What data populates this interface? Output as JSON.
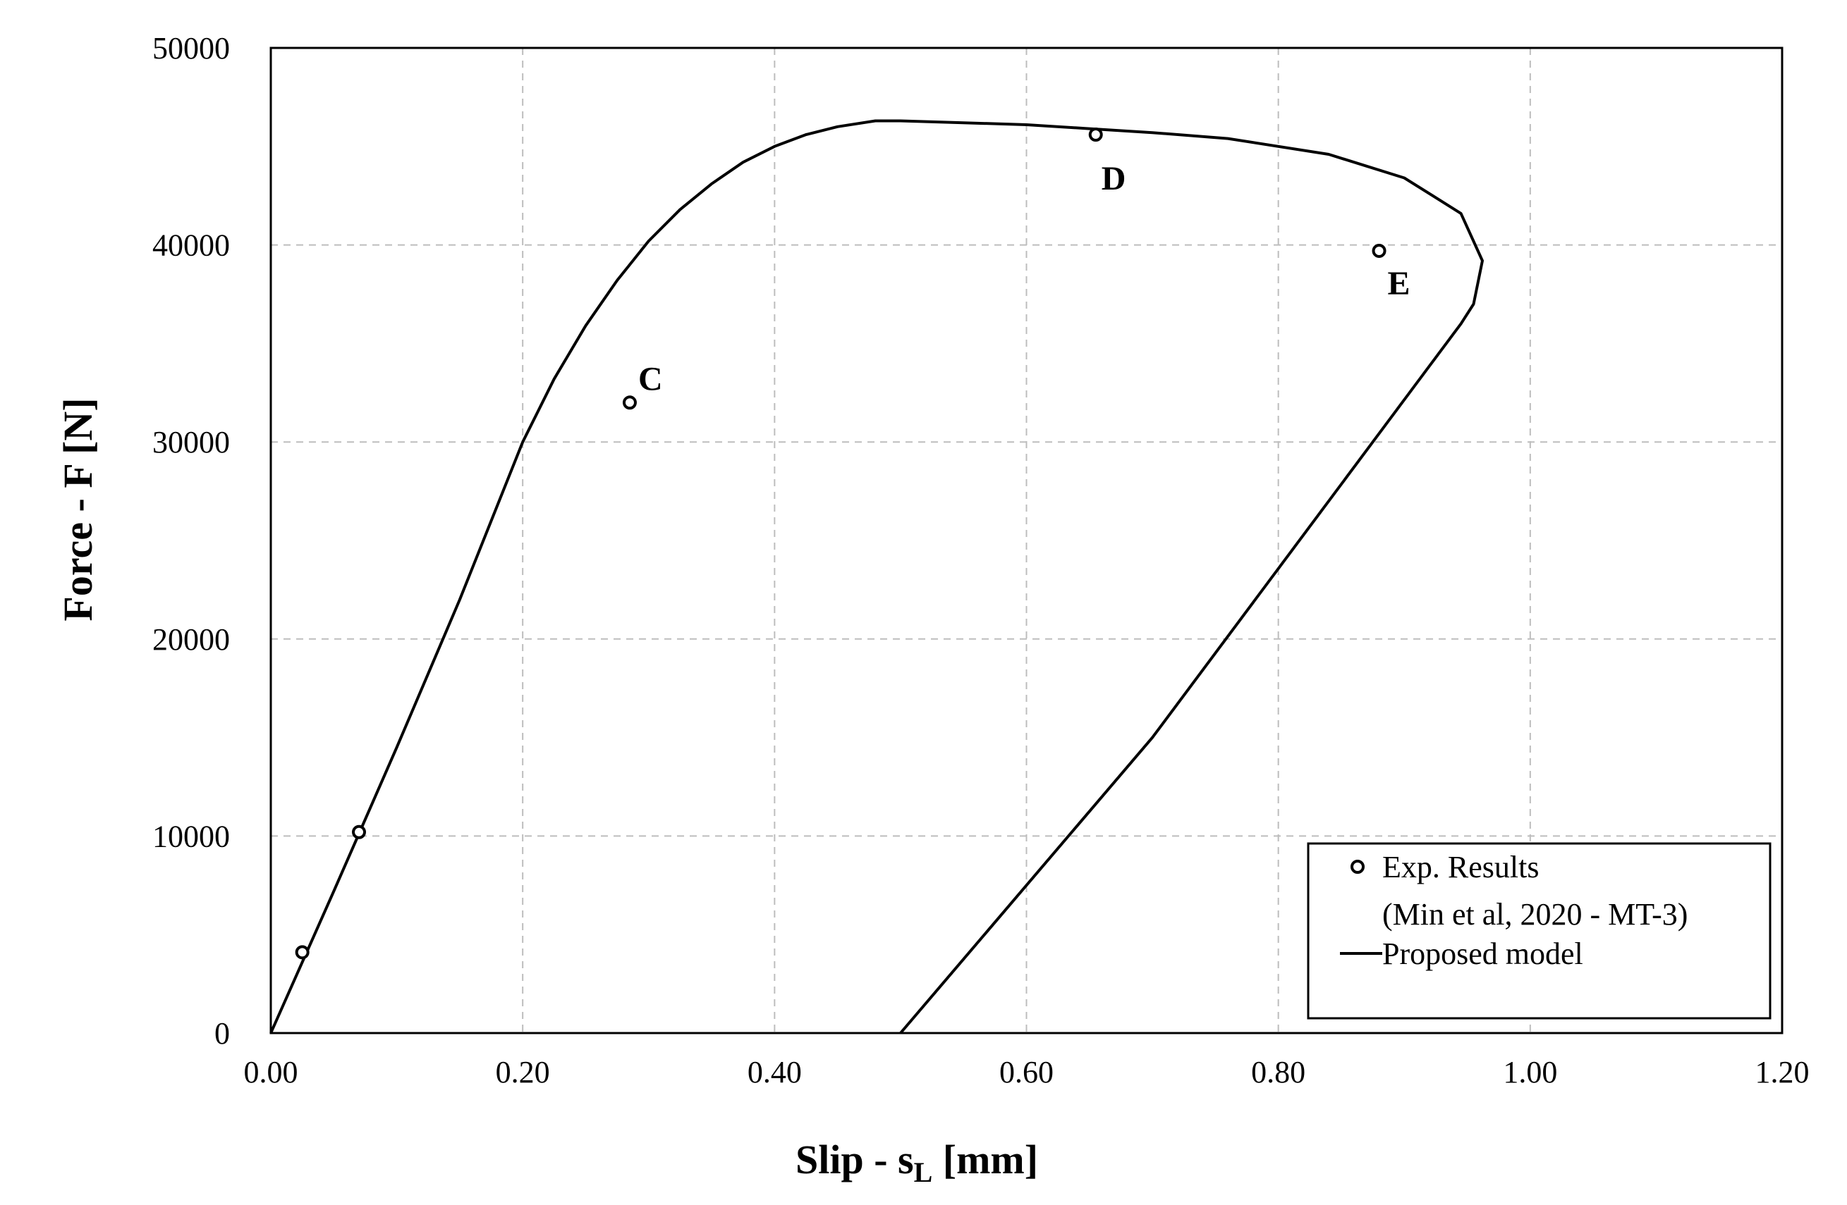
{
  "chart_data": {
    "type": "scatter",
    "title": "",
    "xlabel": {
      "main": "Slip - s",
      "sub": "L",
      "unit": " [mm]"
    },
    "ylabel": "Force - F [N]",
    "xlim": [
      0,
      1.2
    ],
    "ylim": [
      0,
      50000
    ],
    "x_ticks": [
      0,
      0.2,
      0.4,
      0.6,
      0.8,
      1.0,
      1.2
    ],
    "x_tick_labels": [
      "0.00",
      "0.20",
      "0.40",
      "0.60",
      "0.80",
      "1.00",
      "1.20"
    ],
    "y_ticks": [
      0,
      10000,
      20000,
      30000,
      40000,
      50000
    ],
    "y_tick_labels": [
      "0",
      "10000",
      "20000",
      "30000",
      "40000",
      "50000"
    ],
    "grid": true,
    "legend_position": "bottom-right",
    "series": [
      {
        "name": "Exp. Results",
        "name_line2": "(Min et al, 2020 - MT-3)",
        "kind": "markers",
        "points": [
          {
            "x": 0.025,
            "y": 4100,
            "label": ""
          },
          {
            "x": 0.07,
            "y": 10200,
            "label": ""
          },
          {
            "x": 0.285,
            "y": 32000,
            "label": "C"
          },
          {
            "x": 0.655,
            "y": 45600,
            "label": "D"
          },
          {
            "x": 0.88,
            "y": 39700,
            "label": "E"
          }
        ]
      },
      {
        "name": "Proposed model",
        "kind": "line",
        "x": [
          0,
          0.05,
          0.1,
          0.15,
          0.2,
          0.225,
          0.25,
          0.275,
          0.3,
          0.325,
          0.35,
          0.375,
          0.4,
          0.425,
          0.45,
          0.48,
          0.5,
          0.55,
          0.6,
          0.65,
          0.7,
          0.76,
          0.84,
          0.9,
          0.945,
          0.962,
          0.955,
          0.945,
          0.7,
          0.5
        ],
        "y": [
          0,
          7200,
          14500,
          22000,
          30000,
          33200,
          35900,
          38200,
          40200,
          41800,
          43100,
          44200,
          45000,
          45600,
          46000,
          46300,
          46300,
          46200,
          46100,
          45900,
          45700,
          45400,
          44600,
          43400,
          41600,
          39200,
          37000,
          36000,
          15000,
          0
        ]
      }
    ]
  }
}
